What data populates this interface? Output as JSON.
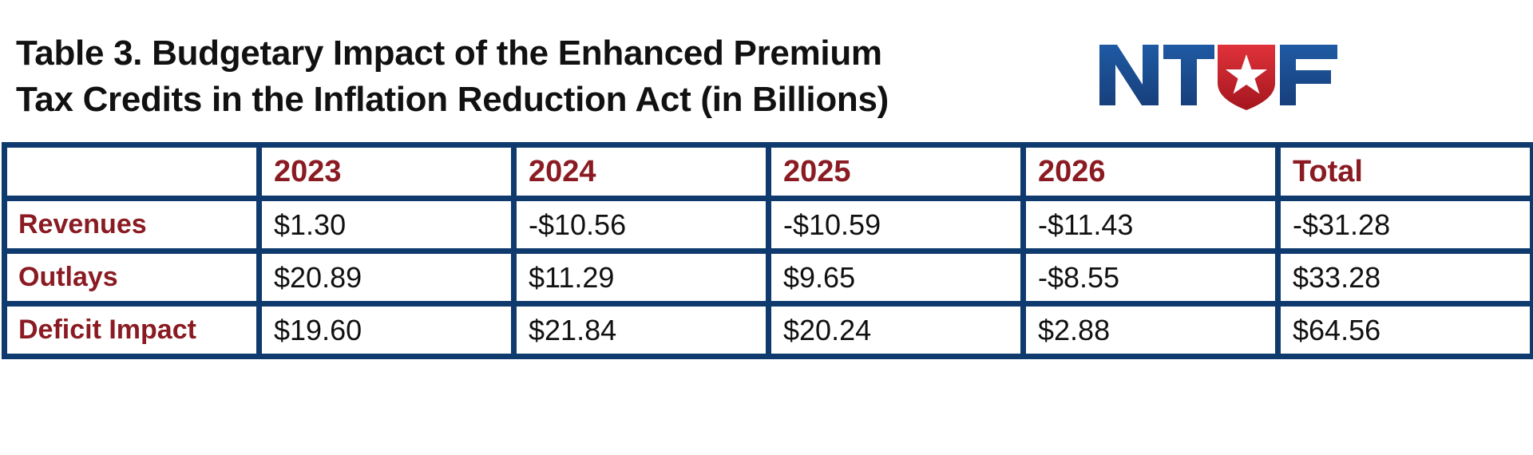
{
  "title_line1": "Table 3. Budgetary Impact of the Enhanced Premium",
  "title_line2": "Tax Credits in the Inflation Reduction Act (in Billions)",
  "logo": {
    "text": "NTUF",
    "colors": {
      "blue": "#1b4f92",
      "red": "#c8202b",
      "star": "#ffffff"
    }
  },
  "colors": {
    "border": "#0f3a6e",
    "header_text": "#8a1b22",
    "body_text": "#111111"
  },
  "chart_data": {
    "type": "table",
    "title": "Table 3. Budgetary Impact of the Enhanced Premium Tax Credits in the Inflation Reduction Act (in Billions)",
    "columns": [
      "",
      "2023",
      "2024",
      "2025",
      "2026",
      "Total"
    ],
    "rows": [
      {
        "label": "Revenues",
        "cells": [
          "$1.30",
          "-$10.56",
          "-$10.59",
          "-$11.43",
          "-$31.28"
        ]
      },
      {
        "label": "Outlays",
        "cells": [
          "$20.89",
          "$11.29",
          "$9.65",
          "-$8.55",
          "$33.28"
        ]
      },
      {
        "label": "Deficit Impact",
        "cells": [
          "$19.60",
          "$21.84",
          "$20.24",
          "$2.88",
          "$64.56"
        ]
      }
    ]
  }
}
